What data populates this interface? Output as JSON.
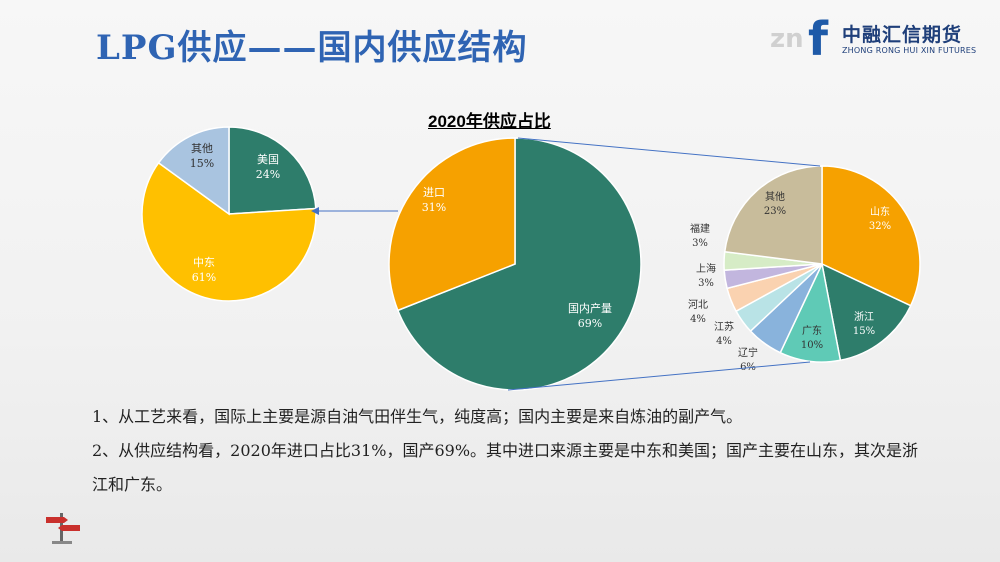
{
  "slide": {
    "title": "LPG供应——国内供应结构",
    "logo": {
      "mark": "zn",
      "brand_cn": "中融汇信期货",
      "brand_en": "ZHONG RONG HUI XIN FUTURES"
    },
    "chart_heading": "2020年供应占比",
    "paragraphs": [
      "1、从工艺来看，国际上主要是源自油气田伴生气，纯度高；国内主要是来自炼油的副产气。",
      "2、从供应结构看，2020年进口占比31%，国产69%。其中进口来源主要是中东和美国；国产主要在山东，其次是浙江和广东。"
    ]
  },
  "chart_data": [
    {
      "type": "pie",
      "title": "2020年供应占比",
      "categories": [
        "国内产量",
        "进口"
      ],
      "values": [
        69,
        31
      ],
      "labels": [
        "69%",
        "31%"
      ],
      "colors": [
        "#2e7d6b",
        "#f6a100"
      ]
    },
    {
      "type": "pie",
      "title": "",
      "categories": [
        "美国",
        "中东",
        "其他"
      ],
      "values": [
        24,
        61,
        15
      ],
      "labels": [
        "24%",
        "61%",
        "15%"
      ],
      "colors": [
        "#2e7d6b",
        "#ffc000",
        "#a9c4e0"
      ]
    },
    {
      "type": "pie",
      "title": "",
      "categories": [
        "山东",
        "浙江",
        "广东",
        "辽宁",
        "江苏",
        "河北",
        "上海",
        "福建",
        "其他"
      ],
      "values": [
        32,
        15,
        10,
        6,
        4,
        4,
        3,
        3,
        23
      ],
      "labels": [
        "32%",
        "15%",
        "10%",
        "6%",
        "4%",
        "4%",
        "3%",
        "3%",
        "23%"
      ],
      "colors": [
        "#f6a100",
        "#2e7d6b",
        "#5fcab6",
        "#89b3dc",
        "#b9e3e6",
        "#fad2b0",
        "#c2b6de",
        "#d6ecc6",
        "#c8bc9b"
      ]
    }
  ]
}
